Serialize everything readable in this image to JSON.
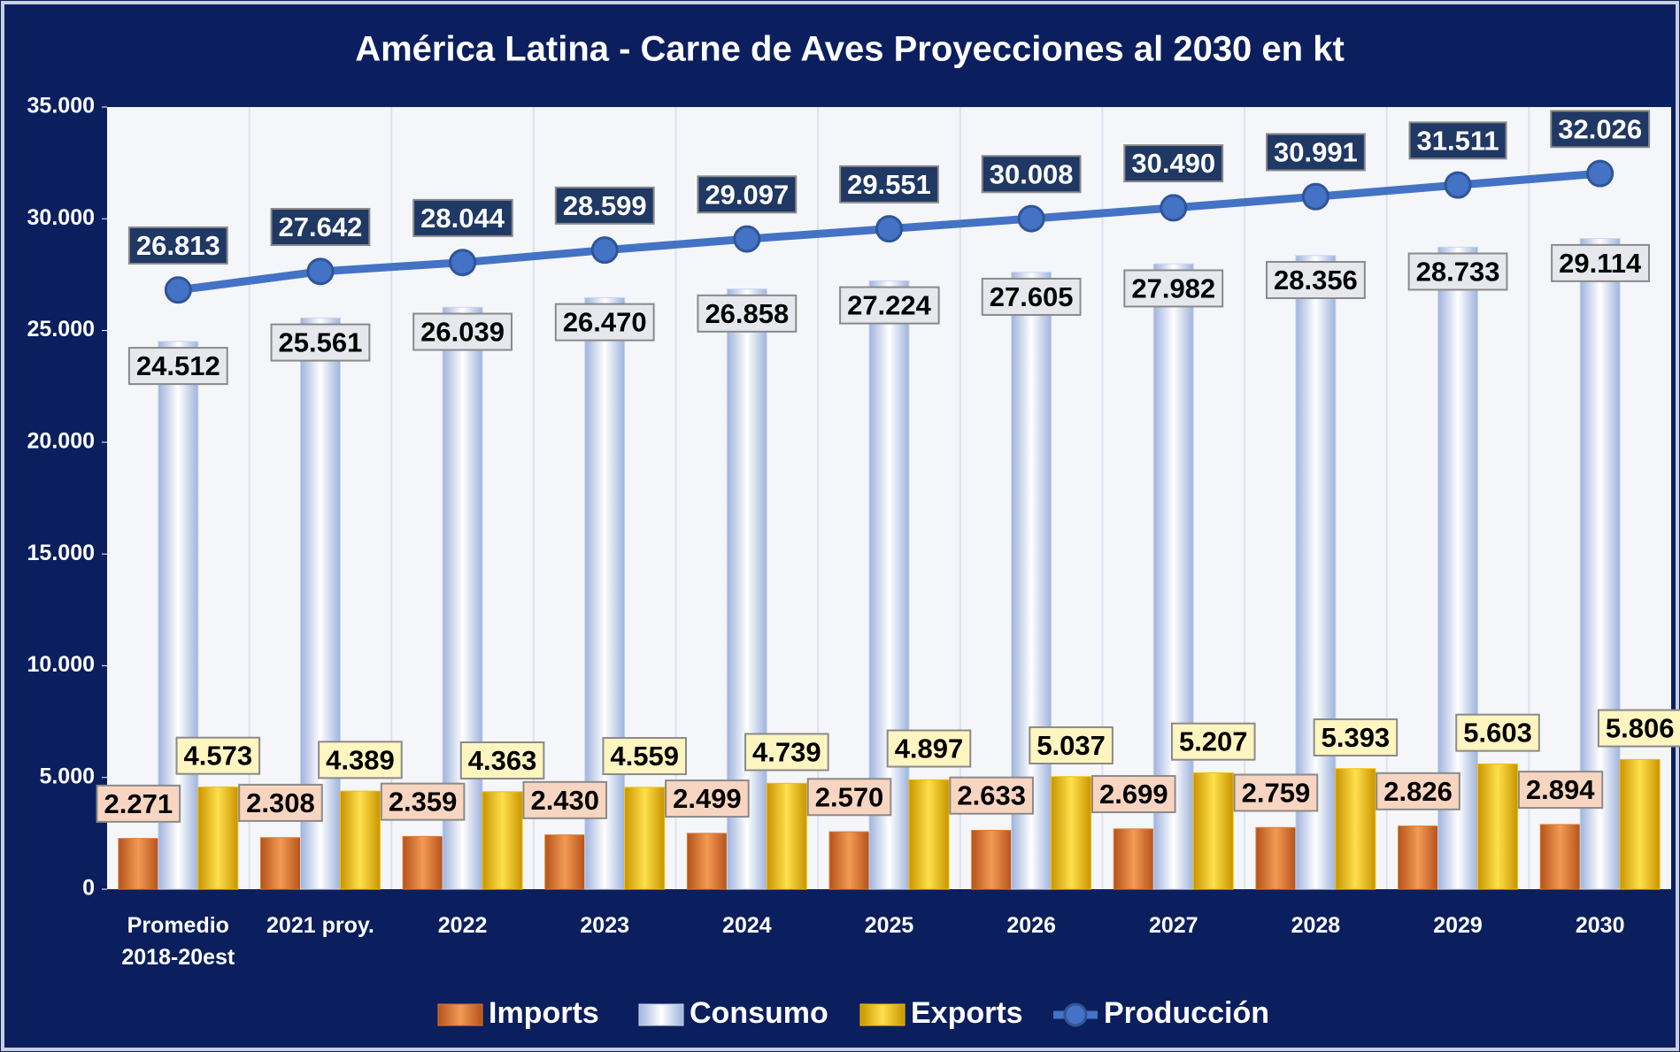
{
  "chart_data": {
    "type": "bar",
    "title": "América Latina - Carne de Aves Proyecciones al 2030 en kt",
    "categories": [
      "Promedio 2018-20est",
      "2021 proy.",
      "2022",
      "2023",
      "2024",
      "2025",
      "2026",
      "2027",
      "2028",
      "2029",
      "2030"
    ],
    "series": [
      {
        "name": "Imports",
        "type": "bar",
        "color": "#e07a30",
        "values": [
          2271,
          2308,
          2359,
          2430,
          2499,
          2570,
          2633,
          2699,
          2759,
          2826,
          2894
        ],
        "value_labels": [
          "2.271",
          "2.308",
          "2.359",
          "2.430",
          "2.499",
          "2.570",
          "2.633",
          "2.699",
          "2.759",
          "2.826",
          "2.894"
        ]
      },
      {
        "name": "Consumo",
        "type": "bar",
        "color": "#c9d6ef",
        "values": [
          24512,
          25561,
          26039,
          26470,
          26858,
          27224,
          27605,
          27982,
          28356,
          28733,
          29114
        ],
        "value_labels": [
          "24.512",
          "25.561",
          "26.039",
          "26.470",
          "26.858",
          "27.224",
          "27.605",
          "27.982",
          "28.356",
          "28.733",
          "29.114"
        ]
      },
      {
        "name": "Exports",
        "type": "bar",
        "color": "#f5c000",
        "values": [
          4573,
          4389,
          4363,
          4559,
          4739,
          4897,
          5037,
          5207,
          5393,
          5603,
          5806
        ],
        "value_labels": [
          "4.573",
          "4.389",
          "4.363",
          "4.559",
          "4.739",
          "4.897",
          "5.037",
          "5.207",
          "5.393",
          "5.603",
          "5.806"
        ]
      },
      {
        "name": "Producción",
        "type": "line",
        "color": "#4472c4",
        "values": [
          26813,
          27642,
          28044,
          28599,
          29097,
          29551,
          30008,
          30490,
          30991,
          31511,
          32026
        ],
        "value_labels": [
          "26.813",
          "27.642",
          "28.044",
          "28.599",
          "29.097",
          "29.551",
          "30.008",
          "30.490",
          "30.991",
          "31.511",
          "32.026"
        ]
      }
    ],
    "ylim": [
      0,
      35000
    ],
    "yticks": [
      {
        "value": 0,
        "label": "0"
      },
      {
        "value": 5000,
        "label": "5.000"
      },
      {
        "value": 10000,
        "label": "10.000"
      },
      {
        "value": 15000,
        "label": "15.000"
      },
      {
        "value": 20000,
        "label": "20.000"
      },
      {
        "value": 25000,
        "label": "25.000"
      },
      {
        "value": 30000,
        "label": "30.000"
      },
      {
        "value": 35000,
        "label": "35.000"
      }
    ]
  }
}
